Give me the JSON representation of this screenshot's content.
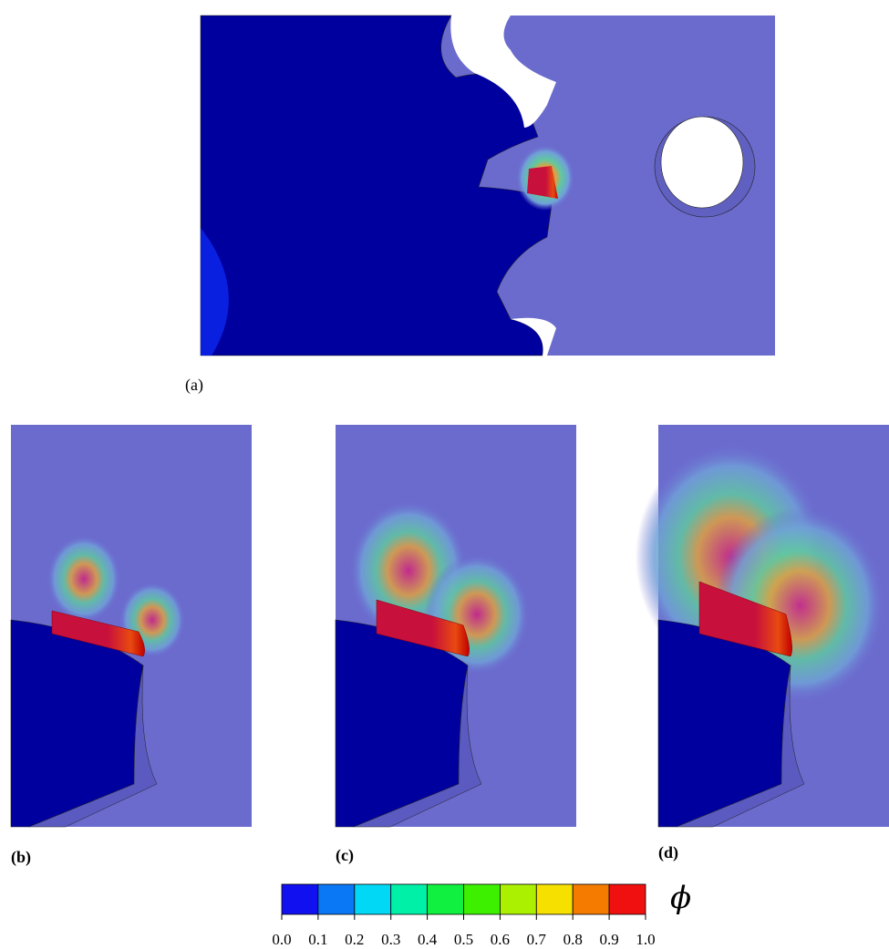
{
  "panels": [
    {
      "label": "(a)"
    },
    {
      "label": "(b)"
    },
    {
      "label": "(c)"
    },
    {
      "label": "(d)"
    }
  ],
  "colorbar": {
    "symbol": "ϕ",
    "ticks": [
      {
        "value": 0,
        "label": "0.0"
      },
      0.1,
      0.2,
      0.3,
      0.4,
      0.5,
      0.6,
      0.7,
      0.8,
      0.9,
      {
        "value": 1,
        "label": "1.0"
      }
    ],
    "colors": [
      "#1010f0",
      "#0a78f5",
      "#00d8f5",
      "#00f0a8",
      "#10f040",
      "#3cf000",
      "#aaf000",
      "#f5e000",
      "#f57a00",
      "#f01010"
    ]
  }
}
